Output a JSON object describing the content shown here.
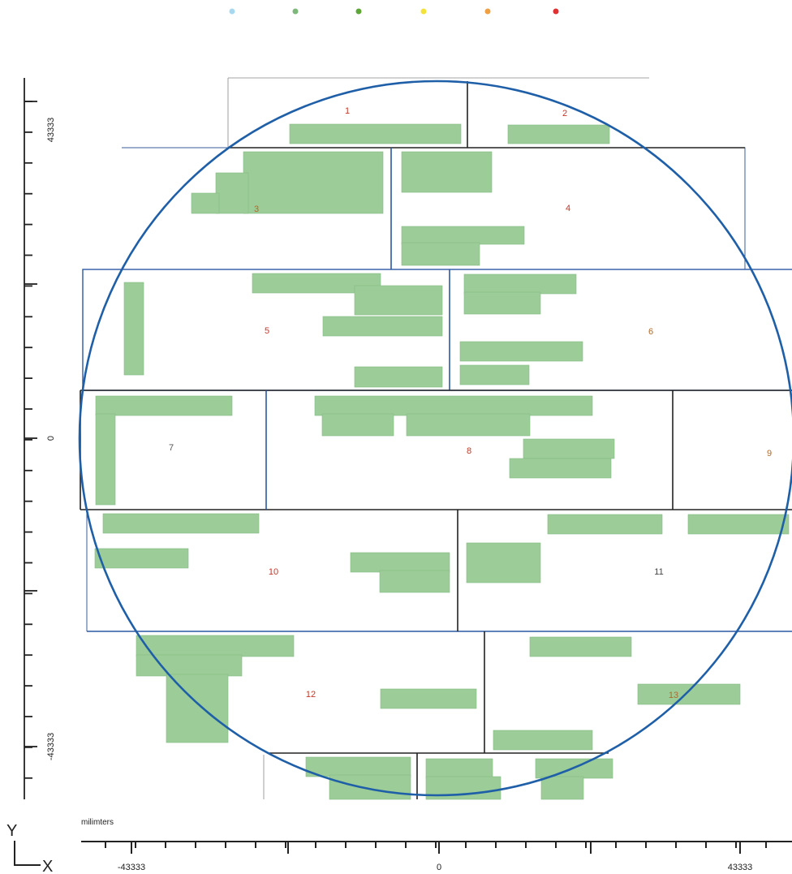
{
  "legend_colors": [
    "#a8d8f0",
    "#7db87a",
    "#5fa63a",
    "#f2e23a",
    "#f0a040",
    "#e03030"
  ],
  "axes": {
    "x_unit": "milimters",
    "x_ticks": [
      "-43333",
      "0",
      "43333"
    ],
    "y_ticks": [
      "43333",
      "0",
      "-43333"
    ],
    "y_corner": "Y",
    "x_corner": "X"
  },
  "fields": [
    {
      "id": "field-1",
      "label": "1"
    },
    {
      "id": "field-2",
      "label": "2"
    },
    {
      "id": "field-3",
      "label": "3"
    },
    {
      "id": "field-4",
      "label": "4"
    },
    {
      "id": "field-5",
      "label": "5"
    },
    {
      "id": "field-6",
      "label": "6"
    },
    {
      "id": "field-7",
      "label": "7"
    },
    {
      "id": "field-8",
      "label": "8"
    },
    {
      "id": "field-9",
      "label": "9"
    },
    {
      "id": "field-10",
      "label": "10"
    },
    {
      "id": "field-11",
      "label": "11"
    },
    {
      "id": "field-12",
      "label": "12"
    },
    {
      "id": "field-13",
      "label": "13"
    }
  ],
  "colors": {
    "wafer_outline": "#1f5fa8",
    "die_fill": "#9ccc98",
    "field_border": "#222222",
    "field_border_blue": "#2c58a4",
    "field_label": "#c0392b",
    "axis": "#222222"
  }
}
